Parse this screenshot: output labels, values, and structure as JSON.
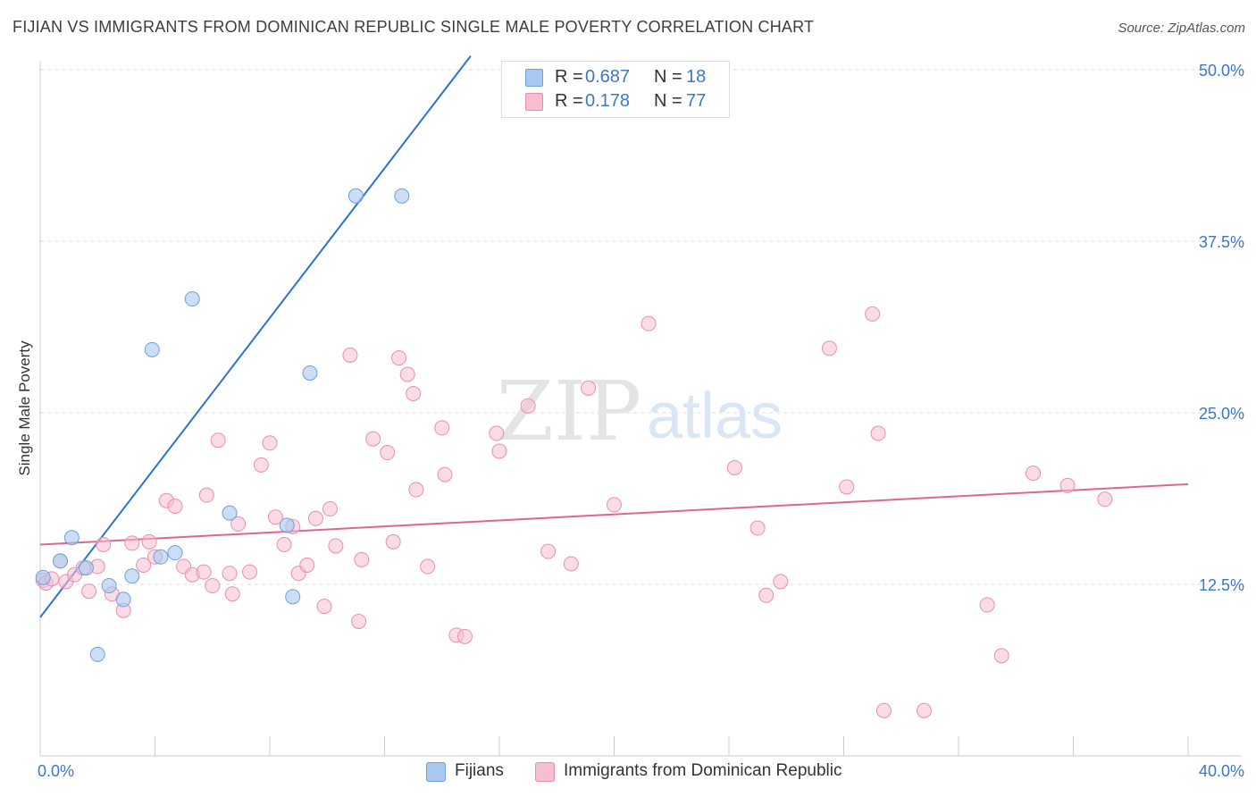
{
  "title": "FIJIAN VS IMMIGRANTS FROM DOMINICAN REPUBLIC SINGLE MALE POVERTY CORRELATION CHART",
  "source": "Source: ZipAtlas.com",
  "watermark": {
    "zip": "ZIP",
    "atlas": "atlas"
  },
  "legend": {
    "fijians": {
      "r_label": "R =",
      "r_value": "0.687",
      "n_label": "N =",
      "n_value": "18"
    },
    "dominican": {
      "r_label": "R =",
      "r_value": "0.178",
      "n_label": "N =",
      "n_value": "77"
    }
  },
  "bottom_legend": {
    "fijians": "Fijians",
    "dominican": "Immigrants from Dominican Republic"
  },
  "colors": {
    "blue_fill": "#a9c8f0",
    "blue_stroke": "#6f9fdc",
    "blue_line": "#2d72d2",
    "pink_fill": "#f7bdd0",
    "pink_stroke": "#e98fae",
    "pink_line": "#e06592",
    "tick_label": "#3b78c8",
    "grid": "#dddddd"
  },
  "chart_data": {
    "type": "scatter",
    "title": "FIJIAN VS IMMIGRANTS FROM DOMINICAN REPUBLIC SINGLE MALE POVERTY CORRELATION CHART",
    "xlabel": "",
    "ylabel": "Single Male Poverty",
    "xlim": [
      0,
      40
    ],
    "ylim": [
      0,
      50
    ],
    "x_tick_labels": [
      "0.0%",
      "40.0%"
    ],
    "y_ticks": [
      12.5,
      25.0,
      37.5,
      50.0
    ],
    "y_tick_labels": [
      "12.5%",
      "25.0%",
      "37.5%",
      "50.0%"
    ],
    "grid": true,
    "series": [
      {
        "name": "Fijians",
        "points": [
          [
            0.1,
            13.0
          ],
          [
            0.7,
            14.2
          ],
          [
            1.1,
            15.9
          ],
          [
            1.6,
            13.7
          ],
          [
            2.0,
            7.4
          ],
          [
            2.4,
            12.4
          ],
          [
            2.9,
            11.4
          ],
          [
            3.2,
            13.1
          ],
          [
            3.9,
            29.6
          ],
          [
            4.2,
            14.5
          ],
          [
            4.7,
            14.8
          ],
          [
            5.3,
            33.3
          ],
          [
            6.6,
            17.7
          ],
          [
            8.6,
            16.8
          ],
          [
            8.8,
            11.6
          ],
          [
            9.4,
            27.9
          ],
          [
            11.0,
            40.8
          ],
          [
            12.6,
            40.8
          ]
        ],
        "trend": {
          "x": [
            0,
            15
          ],
          "y": [
            10.1,
            51.0
          ],
          "solid_to_x": 15
        }
      },
      {
        "name": "Immigrants from Dominican Republic",
        "points": [
          [
            0.1,
            12.8
          ],
          [
            0.2,
            12.6
          ],
          [
            0.4,
            12.9
          ],
          [
            0.7,
            14.2
          ],
          [
            0.9,
            12.7
          ],
          [
            1.2,
            13.2
          ],
          [
            1.5,
            13.7
          ],
          [
            1.7,
            12.0
          ],
          [
            2.0,
            13.8
          ],
          [
            2.2,
            15.4
          ],
          [
            2.5,
            11.8
          ],
          [
            2.9,
            10.6
          ],
          [
            3.2,
            15.5
          ],
          [
            3.6,
            13.9
          ],
          [
            3.8,
            15.6
          ],
          [
            4.0,
            14.5
          ],
          [
            4.4,
            18.6
          ],
          [
            4.7,
            18.2
          ],
          [
            5.0,
            13.8
          ],
          [
            5.3,
            13.2
          ],
          [
            5.7,
            13.4
          ],
          [
            5.8,
            19.0
          ],
          [
            6.0,
            12.4
          ],
          [
            6.2,
            23.0
          ],
          [
            6.6,
            13.3
          ],
          [
            6.7,
            11.8
          ],
          [
            6.9,
            16.9
          ],
          [
            7.3,
            13.4
          ],
          [
            7.7,
            21.2
          ],
          [
            8.0,
            22.8
          ],
          [
            8.2,
            17.4
          ],
          [
            8.5,
            15.4
          ],
          [
            8.8,
            16.7
          ],
          [
            9.0,
            13.3
          ],
          [
            9.3,
            13.9
          ],
          [
            9.6,
            17.3
          ],
          [
            9.9,
            10.9
          ],
          [
            10.1,
            18.0
          ],
          [
            10.3,
            15.3
          ],
          [
            10.8,
            29.2
          ],
          [
            11.1,
            9.8
          ],
          [
            11.2,
            14.3
          ],
          [
            11.6,
            23.1
          ],
          [
            12.1,
            22.1
          ],
          [
            12.3,
            15.6
          ],
          [
            12.5,
            29.0
          ],
          [
            12.8,
            27.8
          ],
          [
            13.0,
            26.4
          ],
          [
            13.1,
            19.4
          ],
          [
            13.5,
            13.8
          ],
          [
            14.0,
            23.9
          ],
          [
            14.1,
            20.5
          ],
          [
            14.5,
            8.8
          ],
          [
            14.8,
            8.7
          ],
          [
            15.9,
            23.5
          ],
          [
            16.0,
            22.2
          ],
          [
            17.0,
            25.5
          ],
          [
            17.7,
            14.9
          ],
          [
            18.5,
            14.0
          ],
          [
            19.1,
            26.8
          ],
          [
            20.0,
            18.3
          ],
          [
            21.2,
            31.5
          ],
          [
            24.2,
            21.0
          ],
          [
            25.0,
            16.6
          ],
          [
            25.3,
            11.7
          ],
          [
            25.8,
            12.7
          ],
          [
            27.5,
            29.7
          ],
          [
            28.1,
            19.6
          ],
          [
            29.0,
            32.2
          ],
          [
            29.2,
            23.5
          ],
          [
            29.4,
            3.3
          ],
          [
            30.8,
            3.3
          ],
          [
            33.0,
            11.0
          ],
          [
            33.5,
            7.3
          ],
          [
            34.6,
            20.6
          ],
          [
            35.8,
            19.7
          ],
          [
            37.1,
            18.7
          ]
        ],
        "trend": {
          "x": [
            0,
            40
          ],
          "y": [
            15.4,
            19.8
          ]
        }
      }
    ]
  }
}
